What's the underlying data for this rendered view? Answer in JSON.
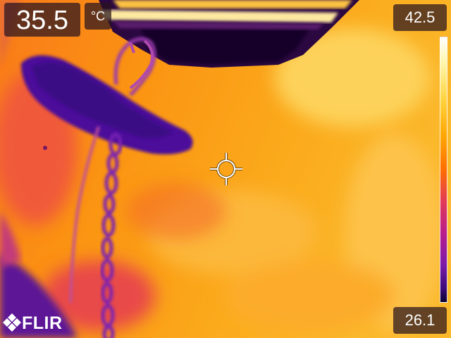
{
  "spot_temperature": "35.5",
  "unit": "°C",
  "scale": {
    "max": "42.5",
    "min": "26.1"
  },
  "brand": "FLIR",
  "palette": "iron",
  "icons": {
    "crosshair": "spot-meter-crosshair-icon",
    "logo": "flir-logo-icon"
  }
}
